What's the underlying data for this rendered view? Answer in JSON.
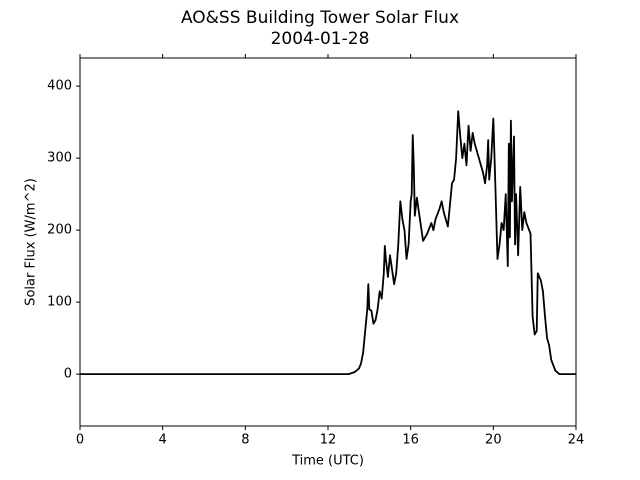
{
  "chart_data": {
    "type": "line",
    "title": "AO&SS Building Tower Solar Flux",
    "subtitle": "2004-01-28",
    "x_label": "Time (UTC)",
    "y_label": "Solar Flux (W/m^2)",
    "xlim": [
      0,
      24
    ],
    "xticks": [
      0,
      4,
      8,
      12,
      16,
      20,
      24
    ],
    "ylim": [
      -72,
      439
    ],
    "yticks": [
      0,
      100,
      200,
      300,
      400
    ],
    "series": [
      {
        "color": "#000000",
        "x": [
          0,
          6,
          12,
          13,
          13.3,
          13.5,
          13.6,
          13.7,
          13.8,
          13.9,
          13.95,
          14,
          14.1,
          14.2,
          14.3,
          14.4,
          14.5,
          14.6,
          14.7,
          14.75,
          14.8,
          14.9,
          15,
          15.1,
          15.2,
          15.3,
          15.4,
          15.5,
          15.6,
          15.7,
          15.8,
          15.9,
          16,
          16.05,
          16.1,
          16.15,
          16.2,
          16.3,
          16.4,
          16.6,
          16.8,
          17,
          17.1,
          17.2,
          17.4,
          17.5,
          17.6,
          17.8,
          18,
          18.1,
          18.2,
          18.3,
          18.4,
          18.5,
          18.6,
          18.7,
          18.8,
          18.9,
          19,
          19.1,
          19.3,
          19.5,
          19.6,
          19.7,
          19.75,
          19.8,
          19.9,
          20,
          20.1,
          20.2,
          20.3,
          20.4,
          20.5,
          20.6,
          20.7,
          20.75,
          20.8,
          20.85,
          20.9,
          21,
          21.05,
          21.1,
          21.2,
          21.3,
          21.4,
          21.5,
          21.6,
          21.8,
          21.9,
          22,
          22.1,
          22.15,
          22.3,
          22.4,
          22.5,
          22.6,
          22.7,
          22.8,
          23,
          23.2,
          24
        ],
        "values": [
          0,
          0,
          0,
          0,
          3,
          8,
          15,
          30,
          60,
          90,
          125,
          90,
          88,
          70,
          75,
          90,
          115,
          105,
          140,
          178,
          160,
          135,
          165,
          145,
          125,
          140,
          180,
          240,
          215,
          200,
          160,
          180,
          240,
          250,
          332,
          290,
          220,
          245,
          225,
          185,
          195,
          210,
          200,
          215,
          230,
          240,
          225,
          205,
          265,
          270,
          300,
          365,
          330,
          300,
          320,
          290,
          345,
          310,
          335,
          320,
          300,
          280,
          265,
          290,
          325,
          270,
          300,
          355,
          260,
          160,
          180,
          210,
          200,
          250,
          150,
          320,
          190,
          352,
          240,
          330,
          180,
          250,
          165,
          260,
          200,
          225,
          210,
          195,
          80,
          55,
          60,
          140,
          130,
          115,
          80,
          50,
          40,
          20,
          5,
          0,
          0
        ]
      }
    ]
  }
}
